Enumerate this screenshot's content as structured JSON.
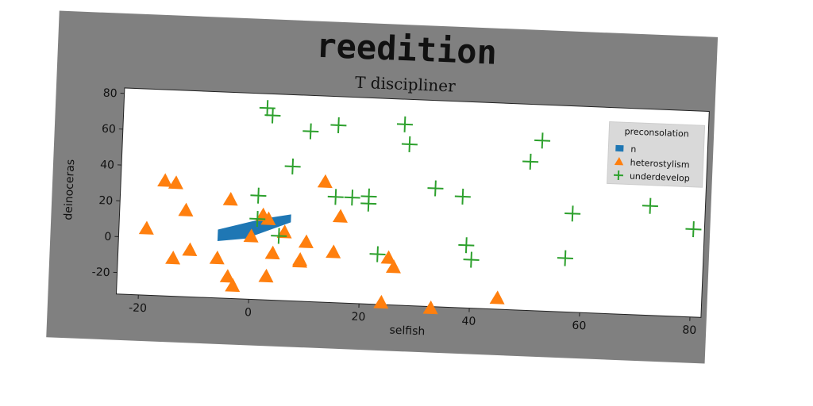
{
  "chart_data": {
    "type": "scatter",
    "title": "reedition",
    "subtitle": "T discipliner",
    "xlabel": "selfish",
    "ylabel": "deinoceras",
    "xlim": [
      -24,
      82
    ],
    "ylim": [
      -32,
      83
    ],
    "xticks": [
      -20,
      0,
      20,
      40,
      60,
      80
    ],
    "yticks": [
      -20,
      0,
      20,
      40,
      60,
      80
    ],
    "grid": false,
    "legend": {
      "title": "preconsolation",
      "placement": "top-right"
    },
    "colors": {
      "frame": "#808080",
      "n": "#1f77b4",
      "heterostylism": "#ff7f0e",
      "underdevelop": "#2ca02c"
    },
    "series": [
      {
        "name": "n",
        "marker": "filled region",
        "points": [
          [
            -6,
            0
          ],
          [
            -6,
            6
          ],
          [
            2,
            13
          ],
          [
            7,
            16
          ],
          [
            7,
            12
          ],
          [
            -1,
            2
          ]
        ]
      },
      {
        "name": "heterostylism",
        "marker": "triangle",
        "points": [
          [
            -19,
            5
          ],
          [
            -16,
            32
          ],
          [
            -14,
            31
          ],
          [
            -12,
            16
          ],
          [
            -4,
            23
          ],
          [
            -14,
            -11
          ],
          [
            -11,
            -6
          ],
          [
            -6,
            -10
          ],
          [
            -4,
            -20
          ],
          [
            -3,
            -25
          ],
          [
            0,
            3
          ],
          [
            2,
            15
          ],
          [
            3,
            13
          ],
          [
            6,
            6
          ],
          [
            4,
            -6
          ],
          [
            3,
            -19
          ],
          [
            9,
            -9
          ],
          [
            9,
            -10
          ],
          [
            10,
            1
          ],
          [
            13,
            35
          ],
          [
            16,
            16
          ],
          [
            15,
            -4
          ],
          [
            25,
            -6
          ],
          [
            26,
            -11
          ],
          [
            24,
            -31
          ],
          [
            33,
            -33
          ],
          [
            45,
            -26
          ]
        ]
      },
      {
        "name": "underdevelop",
        "marker": "plus",
        "points": [
          [
            2,
            75
          ],
          [
            3,
            71
          ],
          [
            10,
            63
          ],
          [
            15,
            67
          ],
          [
            27,
            69
          ],
          [
            28,
            58
          ],
          [
            7,
            43
          ],
          [
            1,
            26
          ],
          [
            1,
            13
          ],
          [
            5,
            4
          ],
          [
            15,
            27
          ],
          [
            18,
            27
          ],
          [
            21,
            28
          ],
          [
            21,
            24
          ],
          [
            23,
            -4
          ],
          [
            33,
            34
          ],
          [
            38,
            30
          ],
          [
            39,
            3
          ],
          [
            40,
            -5
          ],
          [
            50,
            51
          ],
          [
            52,
            63
          ],
          [
            57,
            -2
          ],
          [
            58,
            23
          ],
          [
            72,
            29
          ],
          [
            80,
            17
          ]
        ]
      }
    ]
  }
}
